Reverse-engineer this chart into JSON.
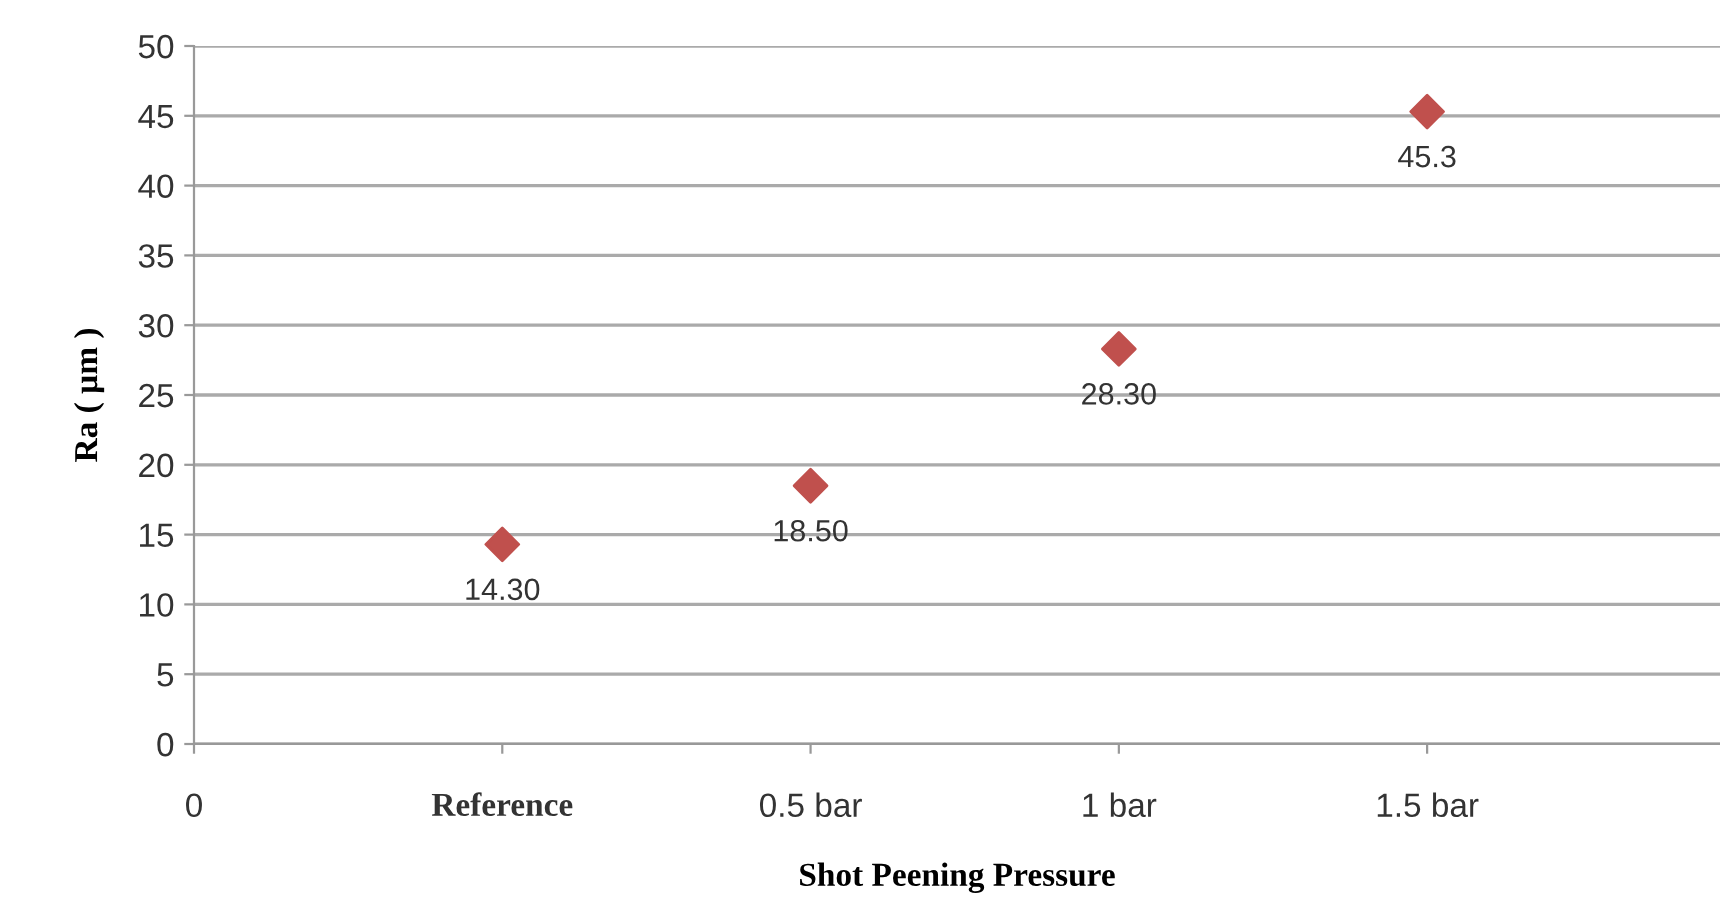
{
  "chart_data": {
    "type": "scatter",
    "xlabel": "Shot Peening Pressure",
    "ylabel": "Ra ( µm )",
    "categories": [
      "0",
      "Reference",
      "0.5 bar",
      "1 bar",
      "1.5 bar"
    ],
    "series": [
      {
        "color": "#c0504d",
        "values": [
          null,
          14.3,
          18.5,
          28.3,
          45.3
        ],
        "value_labels": [
          null,
          "14.30",
          "18.50",
          "28.30",
          "45.3"
        ]
      }
    ],
    "ylim": [
      0,
      50
    ],
    "yticks": [
      0,
      5,
      10,
      15,
      20,
      25,
      30,
      35,
      40,
      45,
      50
    ],
    "grid": "y",
    "marker": "diamond",
    "legend": false
  }
}
